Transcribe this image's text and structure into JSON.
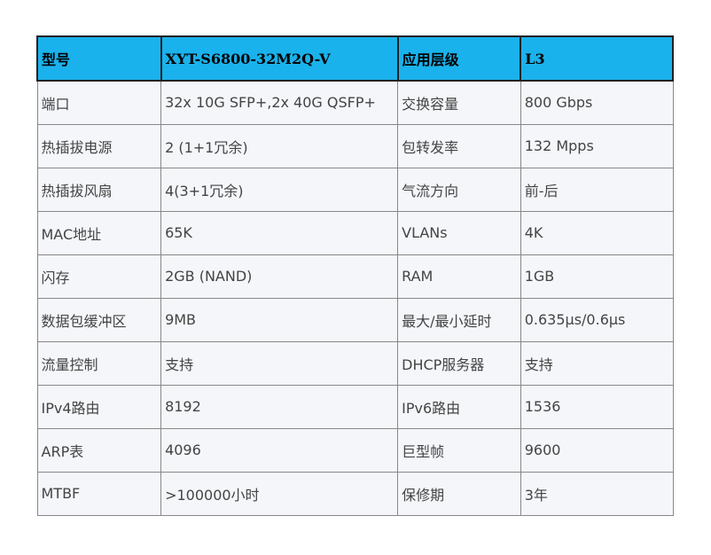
{
  "table": {
    "header": [
      "型号",
      "XYT-S6800-32M2Q-V",
      "应用层级",
      "L3"
    ],
    "rows": [
      [
        "端口",
        "32x 10G SFP+,2x 40G QSFP+",
        "交换容量",
        "800 Gbps"
      ],
      [
        "热插拔电源",
        "2 (1+1冗余)",
        "包转发率",
        "132 Mpps"
      ],
      [
        "热插拔风扇",
        "4(3+1冗余)",
        "气流方向",
        "前-后"
      ],
      [
        "MAC地址",
        "65K",
        "VLANs",
        "4K"
      ],
      [
        "闪存",
        "2GB (NAND)",
        "RAM",
        "1GB"
      ],
      [
        "数据包缓冲区",
        "9MB",
        "最大/最小延时",
        "0.635μs/0.6μs"
      ],
      [
        "流量控制",
        "支持",
        "DHCP服务器",
        "支持"
      ],
      [
        "IPv4路由",
        "8192",
        "IPv6路由",
        "1536"
      ],
      [
        "ARP表",
        "4096",
        "巨型帧",
        "9600"
      ],
      [
        "MTBF",
        ">100000小时",
        "保修期",
        "3年"
      ]
    ]
  }
}
